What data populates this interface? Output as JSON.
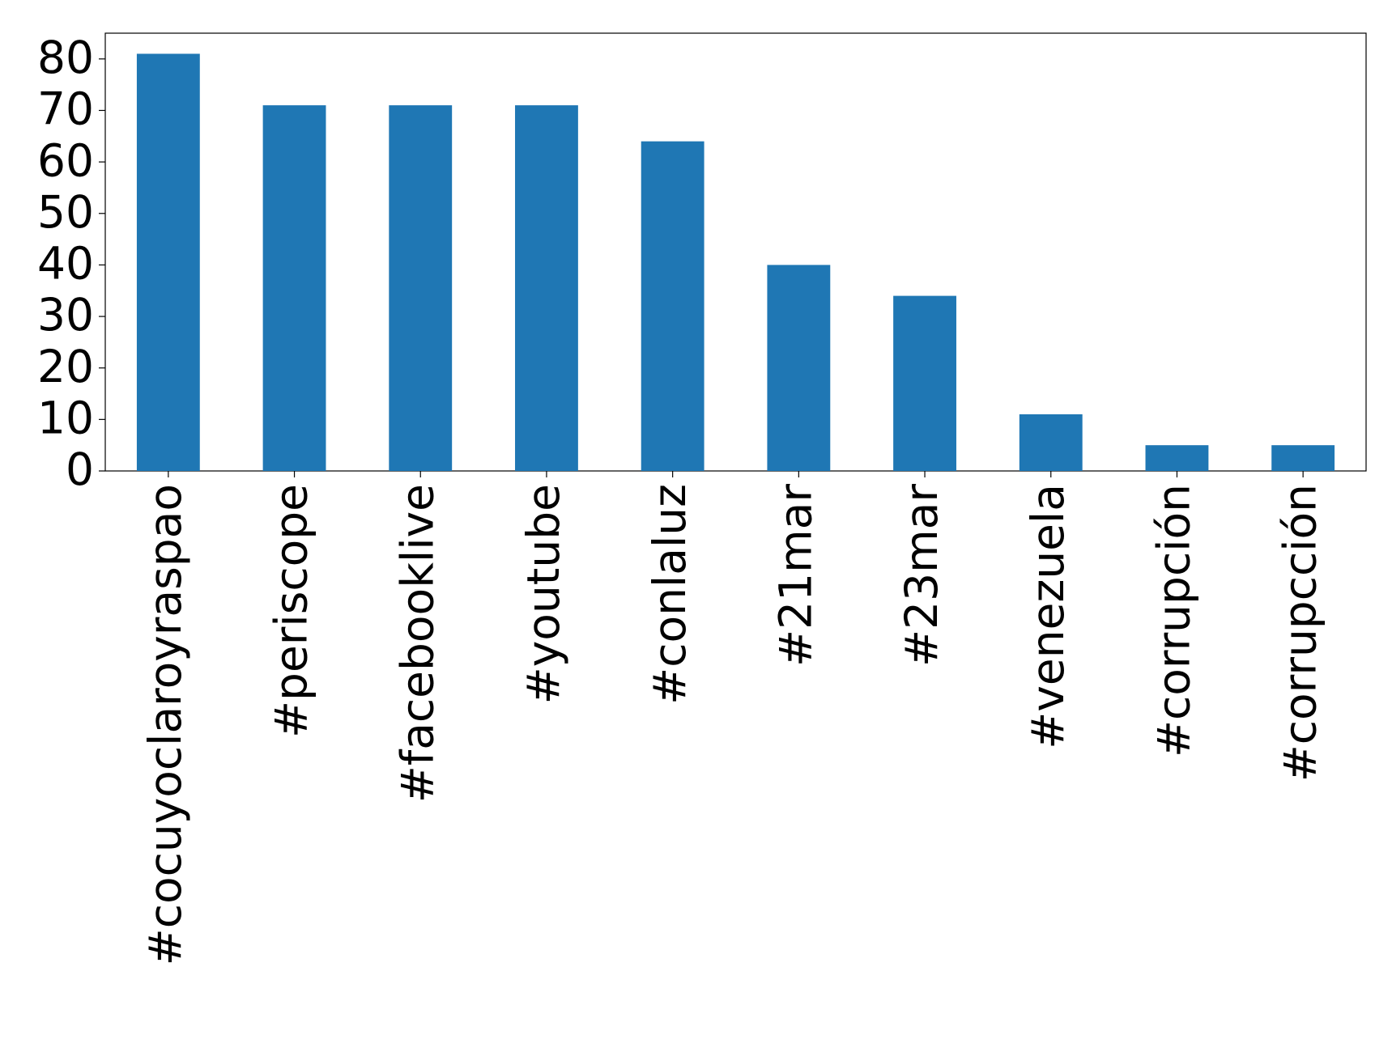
{
  "chart_data": {
    "type": "bar",
    "categories": [
      "#cocuyoclaroyraspao",
      "#periscope",
      "#facebooklive",
      "#youtube",
      "#conlaluz",
      "#21mar",
      "#23mar",
      "#venezuela",
      "#corrupción",
      "#corrupcción"
    ],
    "values": [
      81,
      71,
      71,
      71,
      64,
      40,
      34,
      11,
      5,
      5
    ],
    "color": "#1f77b4",
    "ylim": [
      0,
      85
    ],
    "yticks": [
      0,
      10,
      20,
      30,
      40,
      50,
      60,
      70,
      80
    ],
    "grid": false
  }
}
